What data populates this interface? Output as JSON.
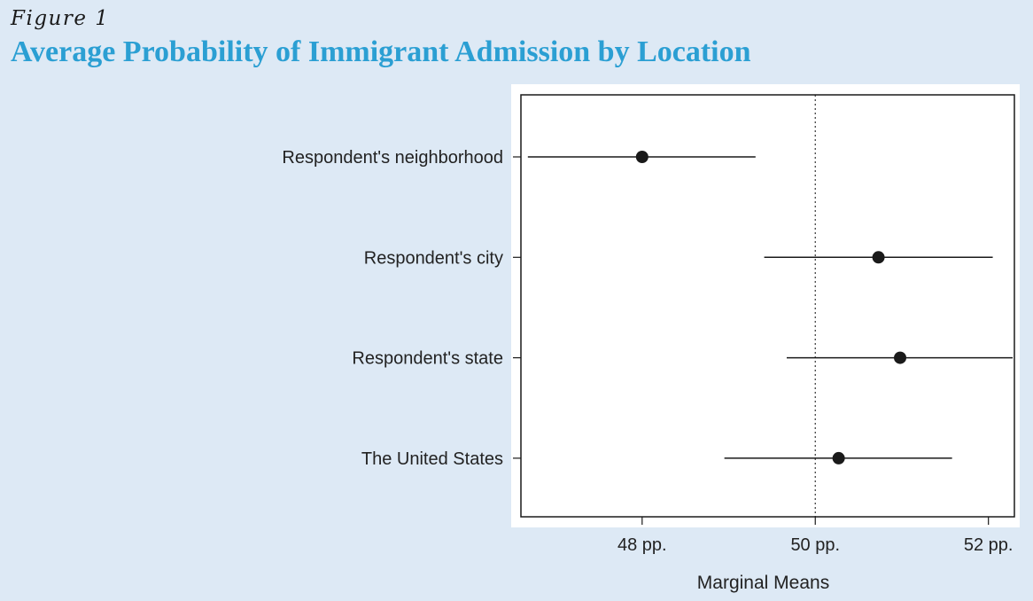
{
  "figure": {
    "label": "Figure 1",
    "title": "Average Probability of Immigrant Admission by Location"
  },
  "colors": {
    "background": "#dde9f5",
    "title": "#2b9fd3",
    "marks": "#1a1a1a"
  },
  "chart_data": {
    "type": "scatter",
    "subtype": "point-and-interval",
    "xlabel": "Marginal Means",
    "ylabel": "",
    "xlim": [
      46.6,
      52.3
    ],
    "xticks": [
      48,
      50,
      52
    ],
    "xtick_labels": [
      "48 pp.",
      "50 pp.",
      "52 pp."
    ],
    "reference_line": 50,
    "grid": false,
    "categories": [
      "Respondent's neighborhood",
      "Respondent's city",
      "Respondent's state",
      "The United States"
    ],
    "estimates": [
      48.0,
      50.73,
      50.98,
      50.27
    ],
    "ci_low": [
      46.68,
      49.41,
      49.67,
      48.95
    ],
    "ci_high": [
      49.31,
      52.05,
      52.28,
      51.58
    ]
  }
}
